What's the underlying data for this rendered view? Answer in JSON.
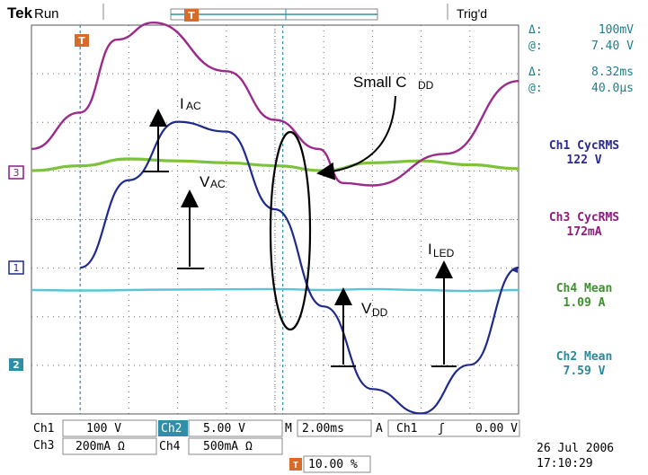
{
  "top_bar": {
    "brand": "Tek",
    "run_state": "Run",
    "trigger_status": "Trig'd",
    "trigger_marker": "T"
  },
  "cursor_readout": {
    "delta_symbol": "Δ:",
    "at_symbol": "@:",
    "v_delta": "100mV",
    "v_at": "7.40 V",
    "t_delta": "8.32ms",
    "t_at": "40.0µs"
  },
  "measurements": [
    {
      "label": "Ch1 CycRMS",
      "value": "122 V",
      "color": "#2a2a8c"
    },
    {
      "label": "Ch3 CycRMS",
      "value": "172mA",
      "color": "#8c1c7c"
    },
    {
      "label": "Ch4 Mean",
      "value": "1.09 A",
      "color": "#3e8f2e"
    },
    {
      "label": "Ch2 Mean",
      "value": "7.59 V",
      "color": "#2a8a9a"
    }
  ],
  "channel_markers": {
    "ch3": "3",
    "ch1": "1",
    "ch2": "2"
  },
  "annotations": {
    "iac_main": "I",
    "iac_sub": "AC",
    "vac_main": "V",
    "vac_sub": "AC",
    "iled_main": "I",
    "iled_sub": "LED",
    "vdd_main": "V",
    "vdd_sub": "DD",
    "small_cdd_text": "Small C",
    "small_cdd_sub": "DD"
  },
  "settings": {
    "ch1_label": "Ch1",
    "ch1_scale": "100 V",
    "ch2_label": "Ch2",
    "ch2_scale": "5.00 V",
    "ch3_label": "Ch3",
    "ch3_scale": "200mA Ω",
    "ch4_label": "Ch4",
    "ch4_scale": "500mA Ω",
    "time_prefix": "M",
    "time_scale": "2.00ms",
    "trig_mode": "A",
    "trig_source": "Ch1",
    "trig_slope": "ʃ",
    "trig_level": "0.00 V",
    "trig_position": "10.00 %",
    "date": "26 Jul  2006",
    "time": "17:10:29"
  },
  "colors": {
    "ch1": "#1f2a8c",
    "ch2": "#5cc3d6",
    "ch3": "#9b2a8c",
    "ch4": "#7cc23a",
    "grid": "#6b6b6b",
    "cursor": "#2f8fa8",
    "readout": "#1a7f8c"
  },
  "chart_data": {
    "type": "line",
    "x_unit": "ms",
    "time_per_div": 2.0,
    "xlim": [
      -2.0,
      18.0
    ],
    "series": [
      {
        "channel": "Ch1",
        "volts_per_div": 100,
        "x": [
          0,
          2,
          4,
          6,
          8,
          10,
          12,
          14,
          16,
          18
        ],
        "y": [
          0,
          180,
          300,
          280,
          120,
          -80,
          -250,
          -300,
          -200,
          0
        ]
      },
      {
        "channel": "Ch3",
        "amps_per_div": 0.2,
        "x": [
          -2,
          0,
          1.5,
          3,
          6,
          8,
          9.8,
          10.8,
          12,
          15,
          18
        ],
        "y": [
          0.1,
          0.25,
          0.55,
          0.62,
          0.42,
          0.22,
          0.1,
          -0.04,
          -0.05,
          0.08,
          0.38
        ]
      },
      {
        "channel": "Ch4",
        "amps_per_div": 0.5,
        "x": [
          -2,
          0,
          2,
          4,
          6,
          8,
          10,
          12,
          14,
          16,
          18
        ],
        "y": [
          1.0,
          1.05,
          1.12,
          1.1,
          1.08,
          1.05,
          1.0,
          1.08,
          1.1,
          1.06,
          1.02
        ]
      },
      {
        "channel": "Ch2",
        "volts_per_div": 5.0,
        "x": [
          -2,
          0,
          4,
          8,
          10,
          12,
          14,
          16,
          18
        ],
        "y": [
          7.2,
          7.15,
          7.25,
          7.3,
          7.2,
          7.3,
          7.2,
          7.1,
          7.2
        ]
      }
    ]
  }
}
